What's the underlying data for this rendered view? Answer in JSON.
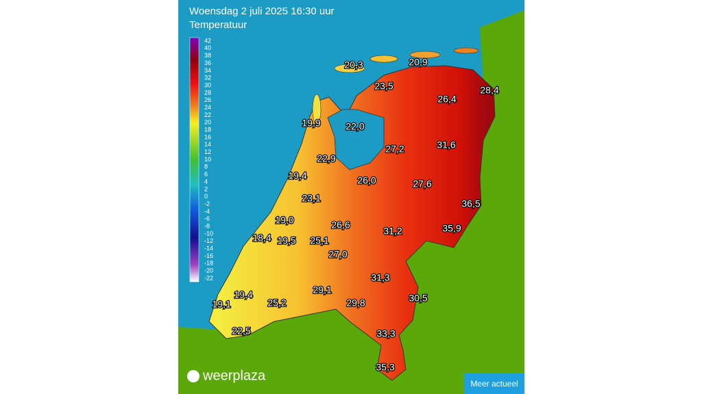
{
  "header": {
    "title": "Woensdag 2 juli 2025 16:30 uur",
    "subtitle": "Temperatuur"
  },
  "legend": {
    "ticks": [
      42,
      40,
      38,
      36,
      34,
      32,
      30,
      28,
      26,
      24,
      22,
      20,
      18,
      16,
      14,
      12,
      10,
      8,
      6,
      4,
      2,
      0,
      -2,
      -4,
      -6,
      -8,
      -10,
      -12,
      -14,
      -16,
      -18,
      -20,
      -22
    ]
  },
  "map": {
    "labels": [
      "20,3",
      "20,9",
      "23,5",
      "28,4",
      "26,4",
      "19,9",
      "22,0",
      "27,2",
      "31,6",
      "22,9",
      "19,4",
      "26,0",
      "27,6",
      "36,5",
      "23,1",
      "19,0",
      "26,6",
      "31,2",
      "35,9",
      "18,4",
      "19,5",
      "25,1",
      "27,0",
      "31,3",
      "29,1",
      "19,4",
      "30,5",
      "19,1",
      "25,2",
      "29,8",
      "33,3",
      "22,5",
      "35,3"
    ]
  },
  "brand": "weerplaza",
  "button": "Meer actueel"
}
